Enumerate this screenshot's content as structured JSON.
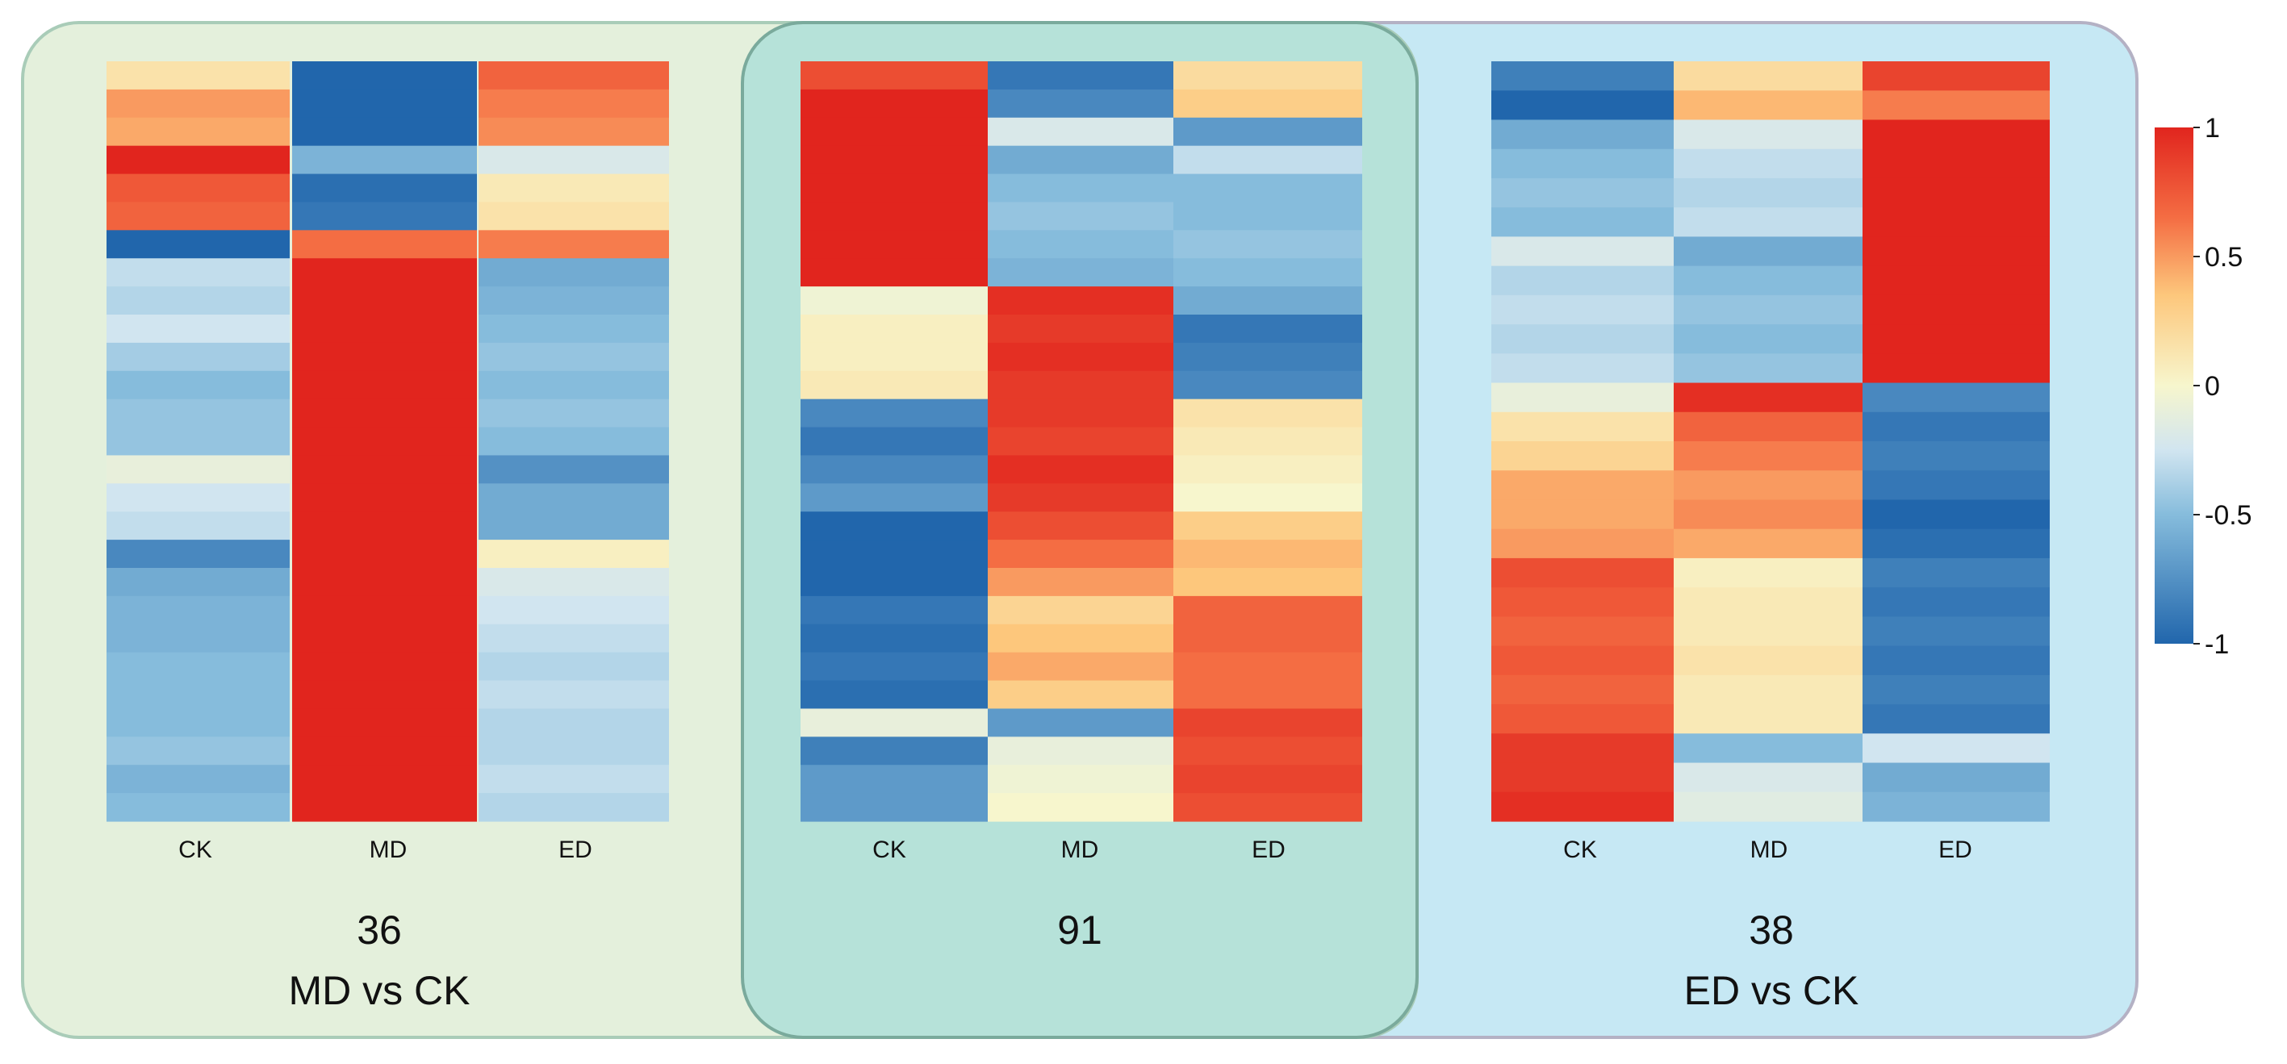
{
  "chart_data": {
    "type": "heatmap",
    "colorscale": {
      "min": -1,
      "max": 1,
      "stops": [
        {
          "value": -1,
          "color": "#2166ac"
        },
        {
          "value": -0.5,
          "color": "#86bcdc"
        },
        {
          "value": -0.25,
          "color": "#d1e5f0"
        },
        {
          "value": 0,
          "color": "#f7f6cd"
        },
        {
          "value": 0.35,
          "color": "#fdc77c"
        },
        {
          "value": 0.65,
          "color": "#f46d43"
        },
        {
          "value": 1,
          "color": "#e1251e"
        }
      ],
      "ticks": [
        {
          "value": 1,
          "label": "1"
        },
        {
          "value": 0.5,
          "label": "0.5"
        },
        {
          "value": 0,
          "label": "0"
        },
        {
          "value": -0.5,
          "label": "-0.5"
        },
        {
          "value": -1,
          "label": "-1"
        }
      ]
    },
    "panels": [
      {
        "id": "md-vs-ck",
        "count": "36",
        "title": "MD vs CK",
        "background": "#e4f0dc",
        "columns": [
          "CK",
          "MD",
          "ED"
        ],
        "rows": [
          [
            0.15,
            -1,
            0.7
          ],
          [
            0.5,
            -1,
            0.6
          ],
          [
            0.45,
            -1,
            0.55
          ],
          [
            1,
            -0.55,
            -0.2
          ],
          [
            0.75,
            -0.95,
            0.1
          ],
          [
            0.7,
            -0.9,
            0.15
          ],
          [
            -1,
            0.65,
            0.6
          ],
          [
            -0.3,
            1,
            -0.6
          ],
          [
            -0.35,
            1,
            -0.55
          ],
          [
            -0.25,
            1,
            -0.5
          ],
          [
            -0.4,
            1,
            -0.45
          ],
          [
            -0.5,
            1,
            -0.5
          ],
          [
            -0.45,
            1,
            -0.45
          ],
          [
            -0.45,
            1,
            -0.5
          ],
          [
            -0.1,
            1,
            -0.75
          ],
          [
            -0.25,
            1,
            -0.6
          ],
          [
            -0.3,
            1,
            -0.6
          ],
          [
            -0.8,
            1,
            0.05
          ],
          [
            -0.6,
            1,
            -0.2
          ],
          [
            -0.55,
            1,
            -0.25
          ],
          [
            -0.55,
            1,
            -0.3
          ],
          [
            -0.5,
            1,
            -0.35
          ],
          [
            -0.5,
            1,
            -0.3
          ],
          [
            -0.5,
            1,
            -0.35
          ],
          [
            -0.45,
            1,
            -0.35
          ],
          [
            -0.55,
            1,
            -0.3
          ],
          [
            -0.5,
            1,
            -0.35
          ]
        ]
      },
      {
        "id": "shared",
        "count": "91",
        "title": "",
        "background": "#b6e2d9",
        "columns": [
          "CK",
          "MD",
          "ED"
        ],
        "rows": [
          [
            0.8,
            -0.9,
            0.2
          ],
          [
            1,
            -0.8,
            0.3
          ],
          [
            1,
            -0.2,
            -0.7
          ],
          [
            1,
            -0.6,
            -0.3
          ],
          [
            1,
            -0.5,
            -0.5
          ],
          [
            1,
            -0.45,
            -0.5
          ],
          [
            1,
            -0.5,
            -0.45
          ],
          [
            1,
            -0.55,
            -0.5
          ],
          [
            -0.05,
            0.95,
            -0.6
          ],
          [
            0.05,
            0.9,
            -0.9
          ],
          [
            0.05,
            0.95,
            -0.85
          ],
          [
            0.1,
            0.9,
            -0.8
          ],
          [
            -0.8,
            0.9,
            0.15
          ],
          [
            -0.9,
            0.85,
            0.1
          ],
          [
            -0.8,
            0.95,
            0.05
          ],
          [
            -0.7,
            0.9,
            0
          ],
          [
            -1,
            0.8,
            0.3
          ],
          [
            -1,
            0.65,
            0.4
          ],
          [
            -1,
            0.5,
            0.35
          ],
          [
            -0.9,
            0.25,
            0.7
          ],
          [
            -0.95,
            0.35,
            0.7
          ],
          [
            -0.9,
            0.45,
            0.65
          ],
          [
            -0.95,
            0.3,
            0.65
          ],
          [
            -0.1,
            -0.7,
            0.85
          ],
          [
            -0.85,
            -0.1,
            0.8
          ],
          [
            -0.7,
            -0.05,
            0.85
          ],
          [
            -0.7,
            0,
            0.8
          ]
        ]
      },
      {
        "id": "ed-vs-ck",
        "count": "38",
        "title": "ED vs CK",
        "background": "#c6e8f4",
        "columns": [
          "CK",
          "MD",
          "ED"
        ],
        "rows": [
          [
            -0.85,
            0.2,
            0.85
          ],
          [
            -1,
            0.4,
            0.6
          ],
          [
            -0.6,
            -0.2,
            1
          ],
          [
            -0.5,
            -0.3,
            1
          ],
          [
            -0.45,
            -0.35,
            1
          ],
          [
            -0.5,
            -0.3,
            1
          ],
          [
            -0.2,
            -0.6,
            1
          ],
          [
            -0.35,
            -0.5,
            1
          ],
          [
            -0.3,
            -0.45,
            1
          ],
          [
            -0.35,
            -0.5,
            1
          ],
          [
            -0.3,
            -0.45,
            1
          ],
          [
            -0.1,
            0.95,
            -0.8
          ],
          [
            0.15,
            0.7,
            -0.9
          ],
          [
            0.25,
            0.6,
            -0.85
          ],
          [
            0.45,
            0.5,
            -0.9
          ],
          [
            0.45,
            0.55,
            -1
          ],
          [
            0.5,
            0.45,
            -0.95
          ],
          [
            0.8,
            0.05,
            -0.85
          ],
          [
            0.75,
            0.1,
            -0.9
          ],
          [
            0.7,
            0.1,
            -0.85
          ],
          [
            0.75,
            0.15,
            -0.9
          ],
          [
            0.7,
            0.1,
            -0.85
          ],
          [
            0.75,
            0.1,
            -0.9
          ],
          [
            0.9,
            -0.5,
            -0.25
          ],
          [
            0.9,
            -0.2,
            -0.6
          ],
          [
            0.95,
            -0.15,
            -0.55
          ]
        ]
      }
    ]
  }
}
